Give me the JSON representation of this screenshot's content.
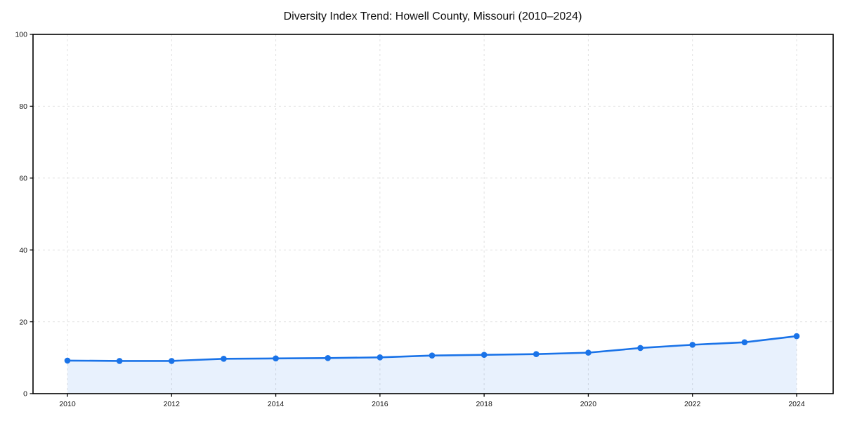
{
  "chart_data": {
    "type": "line",
    "title": "Diversity Index Trend: Howell County, Missouri (2010–2024)",
    "x": [
      2010,
      2011,
      2012,
      2013,
      2014,
      2015,
      2016,
      2017,
      2018,
      2019,
      2020,
      2021,
      2022,
      2023,
      2024
    ],
    "values": [
      9.2,
      9.1,
      9.1,
      9.7,
      9.8,
      9.9,
      10.1,
      10.6,
      10.8,
      11.0,
      11.4,
      12.7,
      13.6,
      14.3,
      16.0
    ],
    "xlabel": "",
    "ylabel": "",
    "xticks": [
      2010,
      2012,
      2014,
      2016,
      2018,
      2020,
      2022,
      2024
    ],
    "yticks": [
      0,
      20,
      40,
      60,
      80,
      100
    ],
    "ylim": [
      0,
      100
    ],
    "grid": true,
    "grid_style": "dashed",
    "legend": "none",
    "marker": "circle",
    "colors": {
      "line": "#1a73e8",
      "fill": "#1a73e8",
      "fill_opacity": 0.1,
      "grid": "#e0e0e0",
      "axis": "#000000",
      "text": "#111111",
      "background": "#ffffff"
    }
  }
}
